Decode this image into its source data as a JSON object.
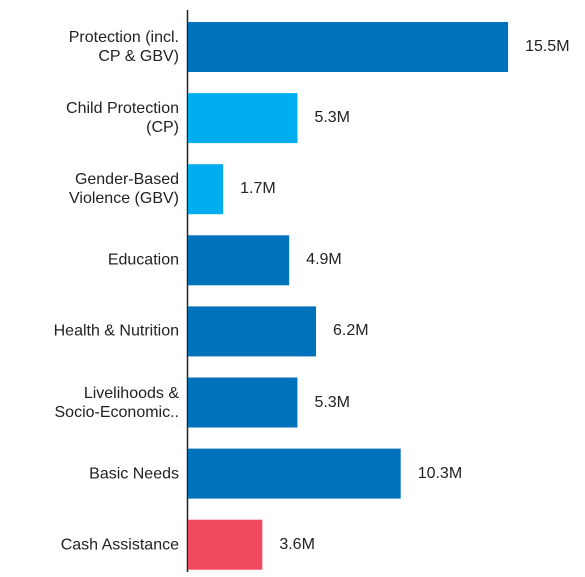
{
  "chart_data": {
    "type": "bar",
    "orientation": "horizontal",
    "categories": [
      "Protection (incl.\nCP & GBV)",
      "Child Protection\n(CP)",
      "Gender-Based\nViolence (GBV)",
      "Education",
      "Health & Nutrition",
      "Livelihoods &\nSocio-Economic..",
      "Basic Needs",
      "Cash Assistance"
    ],
    "values": [
      15.5,
      5.3,
      1.7,
      4.9,
      6.2,
      5.3,
      10.3,
      3.6
    ],
    "value_labels": [
      "15.5M",
      "5.3M",
      "1.7M",
      "4.9M",
      "6.2M",
      "5.3M",
      "10.3M",
      "3.6M"
    ],
    "colors": [
      "#0072bc",
      "#00aeef",
      "#00aeef",
      "#0072bc",
      "#0072bc",
      "#0072bc",
      "#0072bc",
      "#ef4a5f"
    ]
  }
}
